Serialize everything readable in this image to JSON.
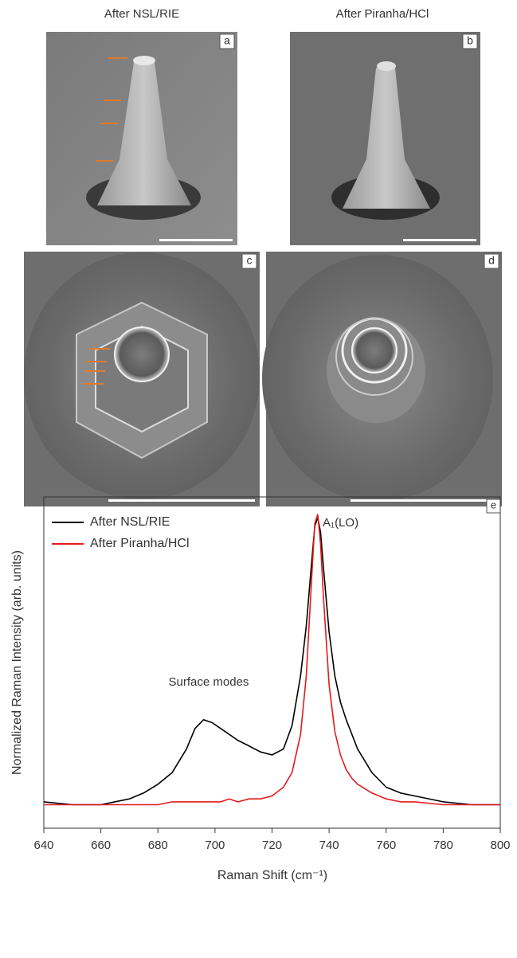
{
  "header": {
    "left_title": "After NSL/RIE",
    "right_title": "After Piranha/HCl"
  },
  "panels": [
    {
      "label": "a"
    },
    {
      "label": "b"
    },
    {
      "label": "c"
    },
    {
      "label": "d"
    }
  ],
  "chart_data": {
    "type": "line",
    "panel_label": "e",
    "xlabel": "Raman Shift (cm⁻¹)",
    "ylabel": "Normalized Raman Intensity (arb. units)",
    "annotations": [
      "Surface modes",
      "A₁(LO)"
    ],
    "x": [
      640,
      650,
      660,
      670,
      675,
      680,
      685,
      690,
      693,
      696,
      699,
      702,
      705,
      708,
      712,
      716,
      720,
      724,
      727,
      730,
      732,
      734,
      735,
      736,
      737,
      738,
      740,
      742,
      744,
      746,
      748,
      750,
      755,
      760,
      765,
      770,
      780,
      790,
      800
    ],
    "series": [
      {
        "name": "After NSL/RIE",
        "color": "#000000",
        "values": [
          0.02,
          0.01,
          0.01,
          0.03,
          0.05,
          0.08,
          0.12,
          0.2,
          0.27,
          0.3,
          0.29,
          0.27,
          0.25,
          0.23,
          0.21,
          0.19,
          0.18,
          0.2,
          0.28,
          0.45,
          0.62,
          0.85,
          0.96,
          0.99,
          0.94,
          0.82,
          0.6,
          0.45,
          0.36,
          0.3,
          0.25,
          0.2,
          0.12,
          0.07,
          0.05,
          0.04,
          0.02,
          0.01,
          0.01
        ]
      },
      {
        "name": "After Piranha/HCl",
        "color": "#e41a1c",
        "values": [
          0.01,
          0.01,
          0.01,
          0.01,
          0.01,
          0.01,
          0.02,
          0.02,
          0.02,
          0.02,
          0.02,
          0.02,
          0.03,
          0.02,
          0.03,
          0.03,
          0.04,
          0.07,
          0.12,
          0.25,
          0.45,
          0.8,
          0.97,
          1.0,
          0.9,
          0.72,
          0.42,
          0.26,
          0.18,
          0.13,
          0.1,
          0.08,
          0.05,
          0.03,
          0.02,
          0.02,
          0.01,
          0.01,
          0.01
        ]
      }
    ],
    "xlim": [
      640,
      800
    ],
    "xticks": [
      640,
      660,
      680,
      700,
      720,
      740,
      760,
      780,
      800
    ],
    "ylim": [
      -0.07,
      1.06
    ],
    "legend": "upper left"
  }
}
